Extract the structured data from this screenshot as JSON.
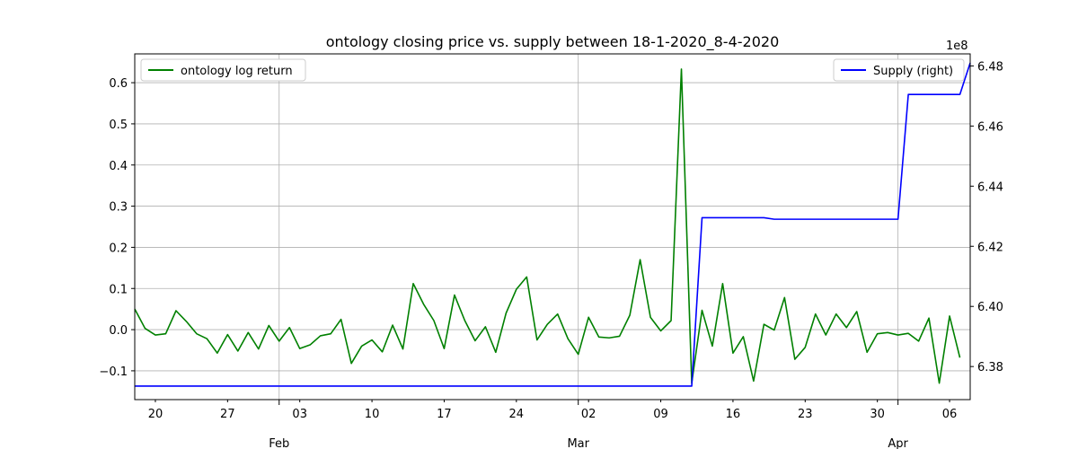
{
  "chart_data": {
    "type": "line",
    "title": "ontology closing price vs. supply between 18-1-2020_8-4-2020",
    "x_start": "2020-01-18",
    "x_end": "2020-04-08",
    "xlabel": "",
    "ylabel_left": "",
    "ylabel_right": "",
    "ylim_left": [
      -0.17,
      0.67
    ],
    "ylim_right": [
      6.369,
      6.484
    ],
    "y_right_offset_label": "1e8",
    "grid": true,
    "x_ticks_minor": [
      {
        "date": "2020-01-20",
        "label": "20"
      },
      {
        "date": "2020-01-27",
        "label": "27"
      },
      {
        "date": "2020-02-03",
        "label": "03"
      },
      {
        "date": "2020-02-10",
        "label": "10"
      },
      {
        "date": "2020-02-17",
        "label": "17"
      },
      {
        "date": "2020-02-24",
        "label": "24"
      },
      {
        "date": "2020-03-02",
        "label": "02"
      },
      {
        "date": "2020-03-09",
        "label": "09"
      },
      {
        "date": "2020-03-16",
        "label": "16"
      },
      {
        "date": "2020-03-23",
        "label": "23"
      },
      {
        "date": "2020-03-30",
        "label": "30"
      },
      {
        "date": "2020-04-06",
        "label": "06"
      }
    ],
    "x_ticks_major": [
      {
        "date": "2020-02-01",
        "label": "Feb"
      },
      {
        "date": "2020-03-01",
        "label": "Mar"
      },
      {
        "date": "2020-04-01",
        "label": "Apr"
      }
    ],
    "y_ticks_left": [
      {
        "value": -0.1,
        "label": "−0.1"
      },
      {
        "value": 0.0,
        "label": "0.0"
      },
      {
        "value": 0.1,
        "label": "0.1"
      },
      {
        "value": 0.2,
        "label": "0.2"
      },
      {
        "value": 0.3,
        "label": "0.3"
      },
      {
        "value": 0.4,
        "label": "0.4"
      },
      {
        "value": 0.5,
        "label": "0.5"
      },
      {
        "value": 0.6,
        "label": "0.6"
      }
    ],
    "y_ticks_right": [
      {
        "value": 6.38,
        "label": "6.38"
      },
      {
        "value": 6.4,
        "label": "6.40"
      },
      {
        "value": 6.42,
        "label": "6.42"
      },
      {
        "value": 6.44,
        "label": "6.44"
      },
      {
        "value": 6.46,
        "label": "6.46"
      },
      {
        "value": 6.48,
        "label": "6.48"
      }
    ],
    "series": [
      {
        "name": "ontology log return",
        "axis": "left",
        "color": "#008000",
        "start_date": "2020-01-18",
        "values": [
          0.05,
          0.003,
          -0.013,
          -0.01,
          0.046,
          0.02,
          -0.01,
          -0.022,
          -0.057,
          -0.012,
          -0.052,
          -0.007,
          -0.047,
          0.01,
          -0.028,
          0.005,
          -0.046,
          -0.037,
          -0.015,
          -0.01,
          0.025,
          -0.082,
          -0.04,
          -0.025,
          -0.054,
          0.011,
          -0.047,
          0.112,
          0.062,
          0.022,
          -0.046,
          0.084,
          0.022,
          -0.027,
          0.007,
          -0.055,
          0.04,
          0.098,
          0.128,
          -0.025,
          0.013,
          0.038,
          -0.022,
          -0.06,
          0.03,
          -0.018,
          -0.02,
          -0.016,
          0.035,
          0.17,
          0.03,
          -0.003,
          0.022,
          0.633,
          -0.13,
          0.047,
          -0.04,
          0.112,
          -0.057,
          -0.017,
          -0.125,
          0.013,
          -0.001,
          0.078,
          -0.072,
          -0.043,
          0.038,
          -0.013,
          0.038,
          0.005,
          0.044,
          -0.055,
          -0.01,
          -0.007,
          -0.013,
          -0.009,
          -0.028,
          0.028,
          -0.13,
          0.033,
          -0.068
        ]
      },
      {
        "name": "Supply (right)",
        "axis": "right",
        "color": "#0000ff",
        "points": [
          {
            "date": "2020-01-18",
            "value": 6.3735
          },
          {
            "date": "2020-03-12",
            "value": 6.3735
          },
          {
            "date": "2020-03-13",
            "value": 6.4295
          },
          {
            "date": "2020-03-19",
            "value": 6.4295
          },
          {
            "date": "2020-03-20",
            "value": 6.429
          },
          {
            "date": "2020-04-01",
            "value": 6.429
          },
          {
            "date": "2020-04-02",
            "value": 6.4705
          },
          {
            "date": "2020-04-07",
            "value": 6.4705
          },
          {
            "date": "2020-04-08",
            "value": 6.481
          }
        ]
      }
    ],
    "legend_left": {
      "placement": "upper-left",
      "label": "ontology log return"
    },
    "legend_right": {
      "placement": "upper-right",
      "label": "Supply (right)"
    }
  }
}
